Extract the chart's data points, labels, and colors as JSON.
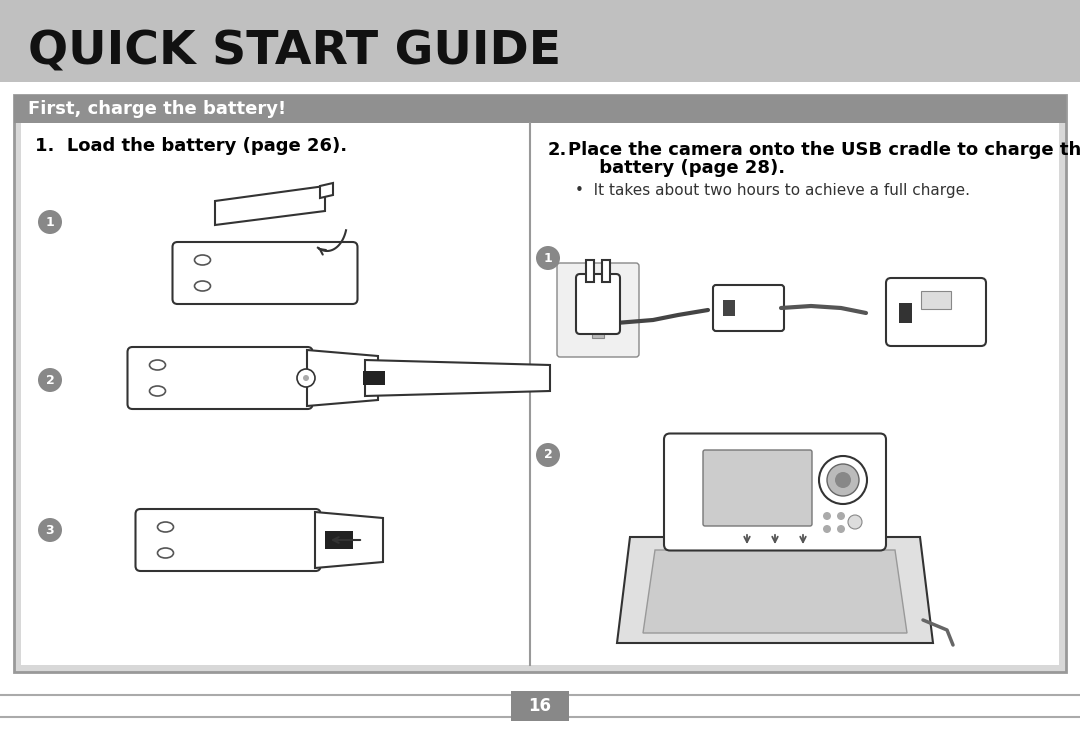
{
  "title": "QUICK START GUIDE",
  "title_bg_color": "#c0c0c0",
  "title_font_size": 34,
  "section_header": "First, charge the battery!",
  "section_header_bg": "#909090",
  "section_header_font_size": 13,
  "content_bg": "#d8d8d8",
  "white_bg": "#ffffff",
  "step1_title": "1.  Load the battery (page 26).",
  "step2_label": "2.",
  "step2_text_line1": "Place the camera onto the USB cradle to charge the",
  "step2_text_line2": "     battery (page 28).",
  "step2_bullet": "•  It takes about two hours to achieve a full charge.",
  "page_number": "16",
  "page_number_bg": "#888888",
  "border_color": "#999999",
  "divider_color": "#aaaaaa",
  "circle_color": "#888888",
  "line_color": "#333333"
}
